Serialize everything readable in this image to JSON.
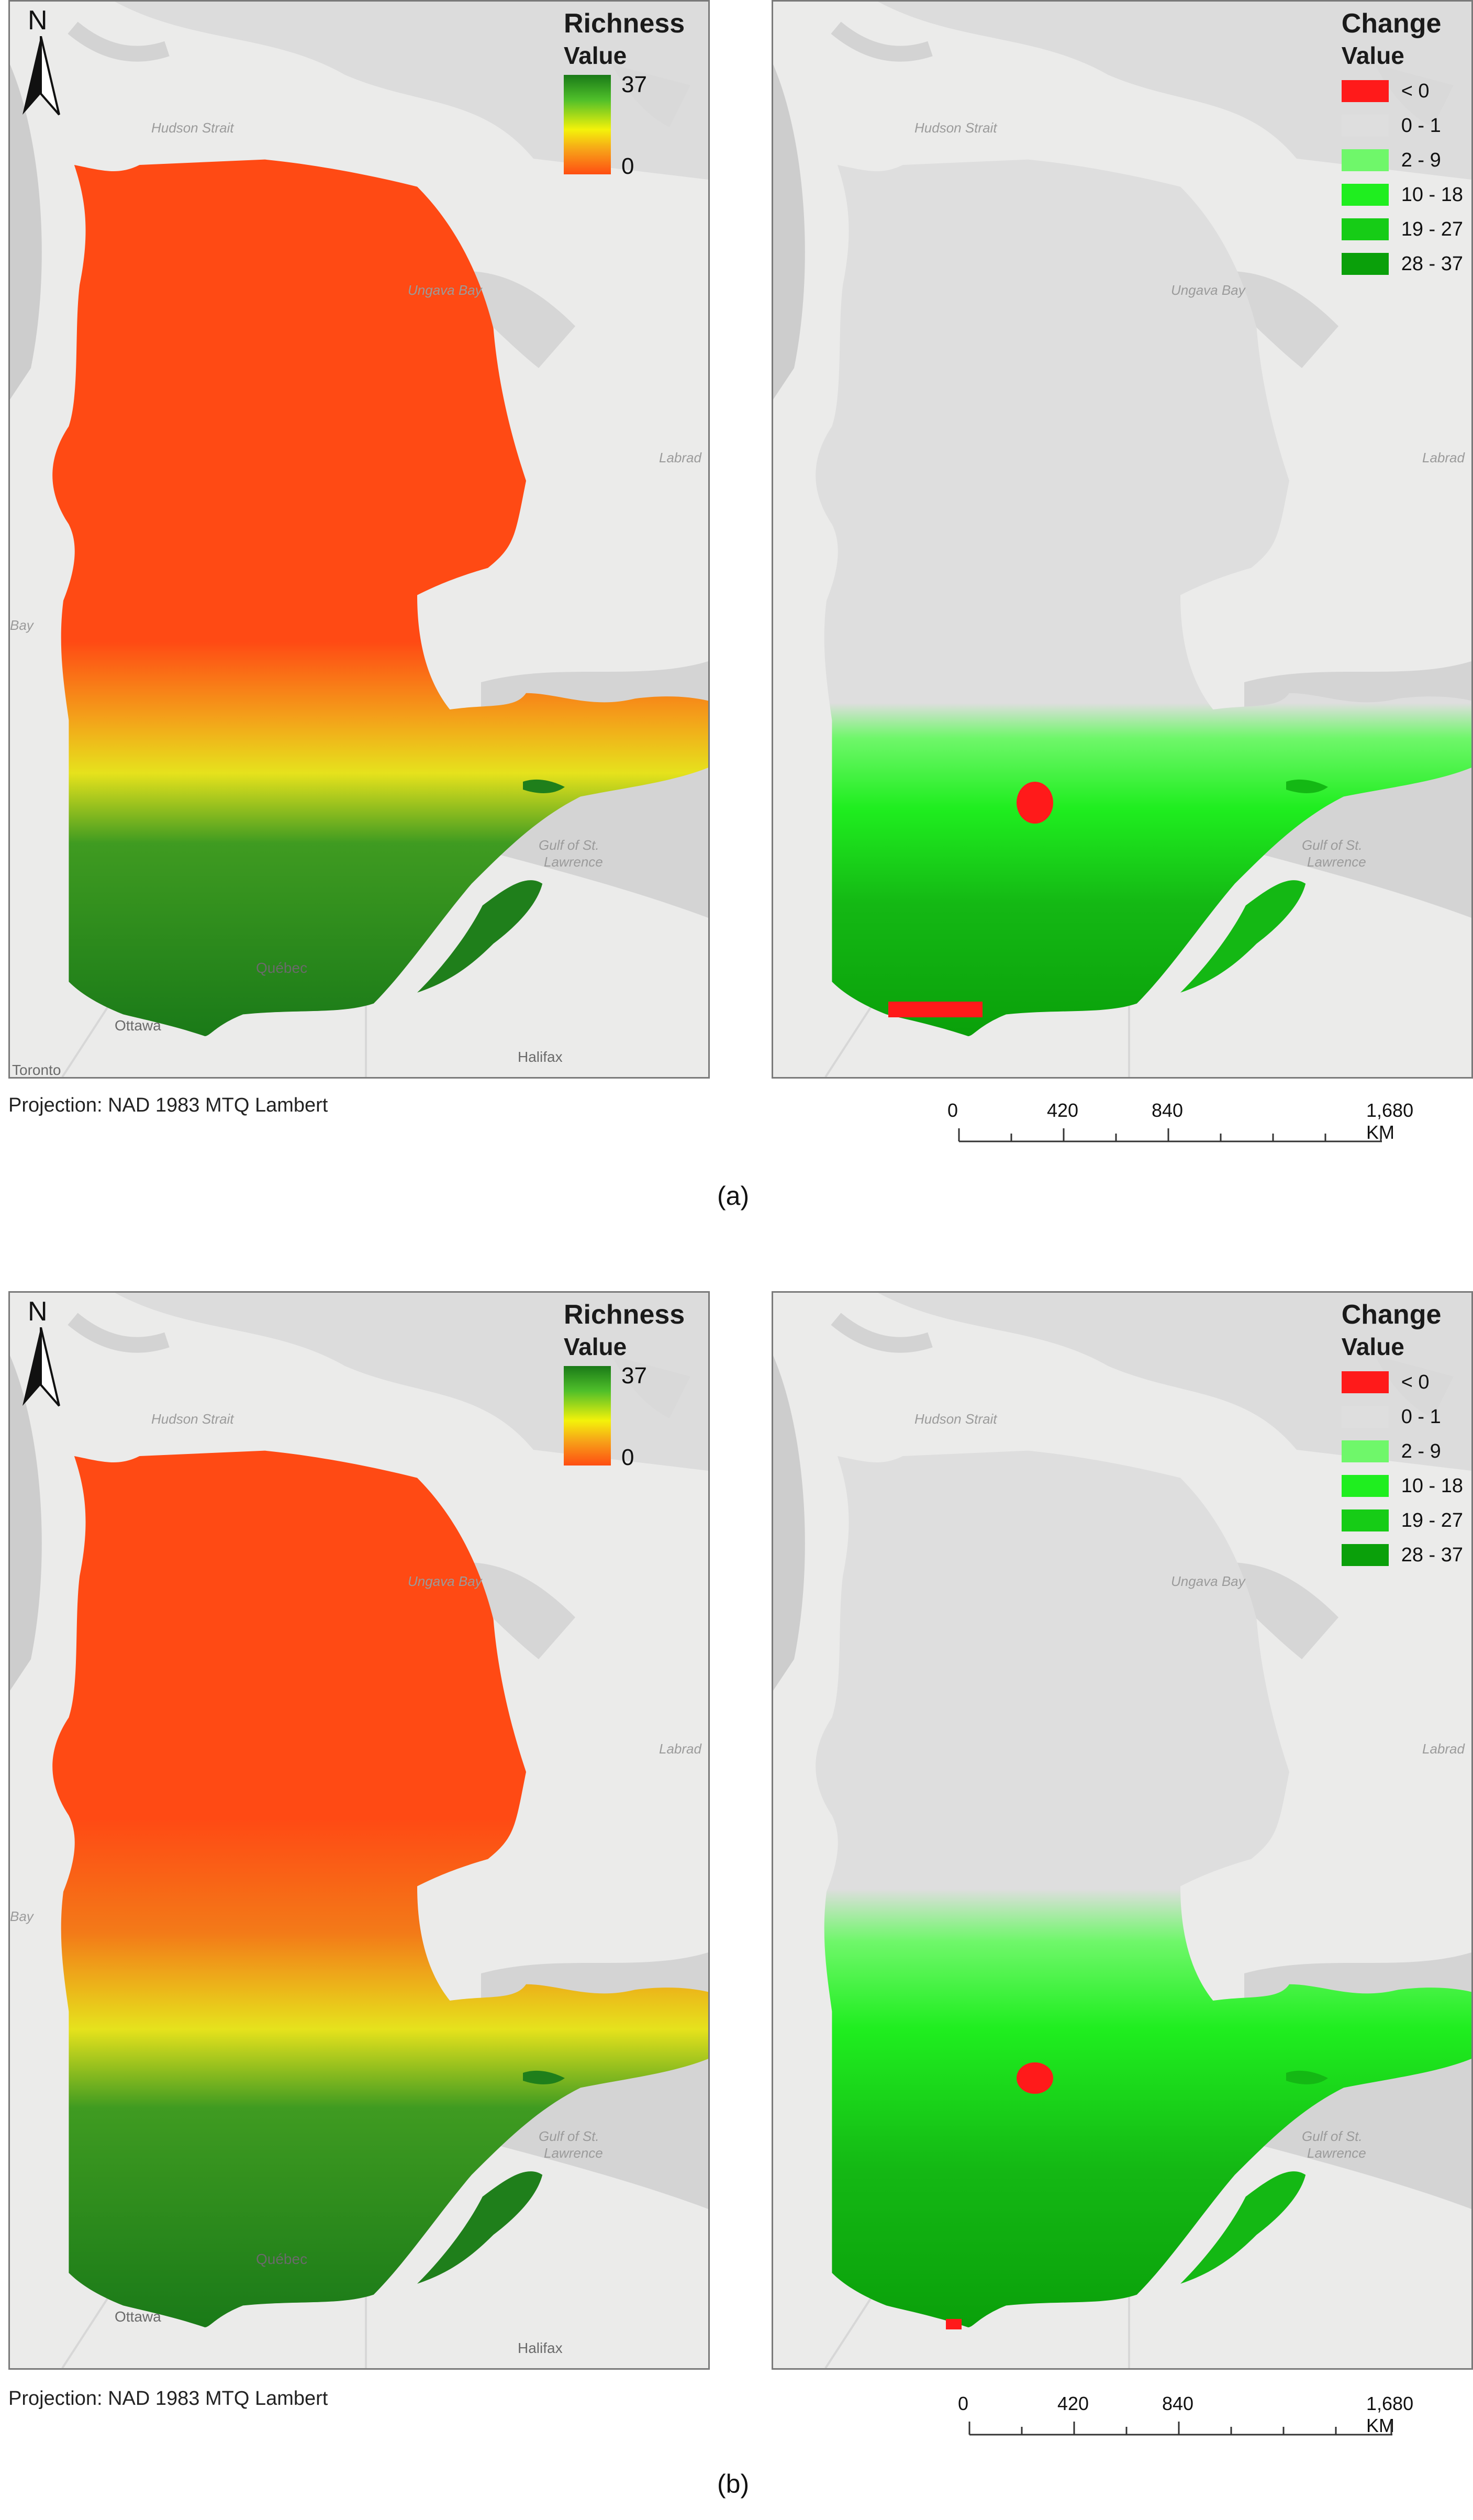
{
  "panels": {
    "a": {
      "richness": {
        "title": "Richness",
        "subtitle": "Value",
        "max": "37",
        "min": "0"
      },
      "change": {
        "title": "Change",
        "subtitle": "Value",
        "classes": [
          {
            "label": "< 0",
            "color": "#ff1a1a"
          },
          {
            "label": "0 - 1",
            "color": "#dedede"
          },
          {
            "label": "2 - 9",
            "color": "#6ff76a"
          },
          {
            "label": "10 - 18",
            "color": "#1fee1f"
          },
          {
            "label": "19 - 27",
            "color": "#16cc16"
          },
          {
            "label": "28 - 37",
            "color": "#0aa00a"
          }
        ]
      },
      "caption": "(a)"
    },
    "b": {
      "richness": {
        "title": "Richness",
        "subtitle": "Value",
        "max": "37",
        "min": "0"
      },
      "change": {
        "title": "Change",
        "subtitle": "Value",
        "classes": [
          {
            "label": "< 0",
            "color": "#ff1a1a"
          },
          {
            "label": "0 - 1",
            "color": "#dedede"
          },
          {
            "label": "2 - 9",
            "color": "#6ff76a"
          },
          {
            "label": "10 - 18",
            "color": "#1fee1f"
          },
          {
            "label": "19 - 27",
            "color": "#16cc16"
          },
          {
            "label": "28 - 37",
            "color": "#0aa00a"
          }
        ]
      },
      "caption": "(b)"
    }
  },
  "north_label": "N",
  "projection": "Projection: NAD 1983 MTQ Lambert",
  "scale": {
    "ticks": [
      "0",
      "420",
      "840",
      "1,680 KM"
    ]
  },
  "place_labels": {
    "hudson_strait": "Hudson Strait",
    "ungava_bay": "Ungava Bay",
    "labrador": "Labrad",
    "gulf": "Gulf of St.",
    "lawrence": "Lawrence",
    "quebec": "Québec",
    "ottawa": "Ottawa",
    "halifax": "Halifax",
    "toronto": "Toronto",
    "bay": "Bay"
  },
  "colors": {
    "land_bg": "#ebebea",
    "water": "#cdcdcd",
    "richness_low": "#ff4d12",
    "richness_high": "#1a7a18"
  }
}
